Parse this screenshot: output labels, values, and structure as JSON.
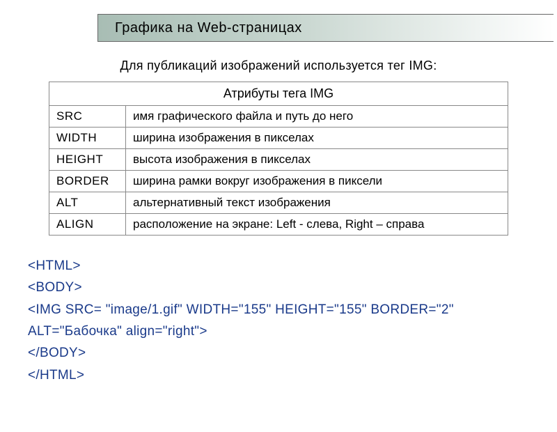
{
  "header": {
    "title": "Графика на Web-страницах"
  },
  "subtitle": "Для публикаций изображений используется тег IMG:",
  "table": {
    "caption": "Атрибуты тега IMG",
    "rows": [
      {
        "attr": "SRC",
        "desc": "имя графического файла и путь до него"
      },
      {
        "attr": "WIDTH",
        "desc": "ширина изображения в пикселах"
      },
      {
        "attr": "HEIGHT",
        "desc": "высота изображения в пикселах"
      },
      {
        "attr": "BORDER",
        "desc": "ширина рамки вокруг изображения в пиксели"
      },
      {
        "attr": "ALT",
        "desc": "альтернативный текст изображения"
      },
      {
        "attr": "ALIGN",
        "desc": "расположение на экране: Left - слева, Right – справа"
      }
    ]
  },
  "code": {
    "line1": "<HTML>",
    "line2": "<BODY>",
    "line3": "<IMG SRC= \"image/1.gif\" WIDTH=\"155\" HEIGHT=\"155\" BORDER=\"2\"",
    "line4": "ALT=\"Бабочка\" align=\"right\">",
    "line5": "</BODY>",
    "line6": "</HTML>"
  },
  "styling": {
    "header_gradient_start": "#a8bdb4",
    "header_gradient_end": "#ffffff",
    "border_color": "#888888",
    "code_color": "#1a3a8a",
    "body_bg": "#ffffff",
    "title_fontsize": 20,
    "subtitle_fontsize": 18,
    "table_fontsize": 17,
    "code_fontsize": 19
  }
}
